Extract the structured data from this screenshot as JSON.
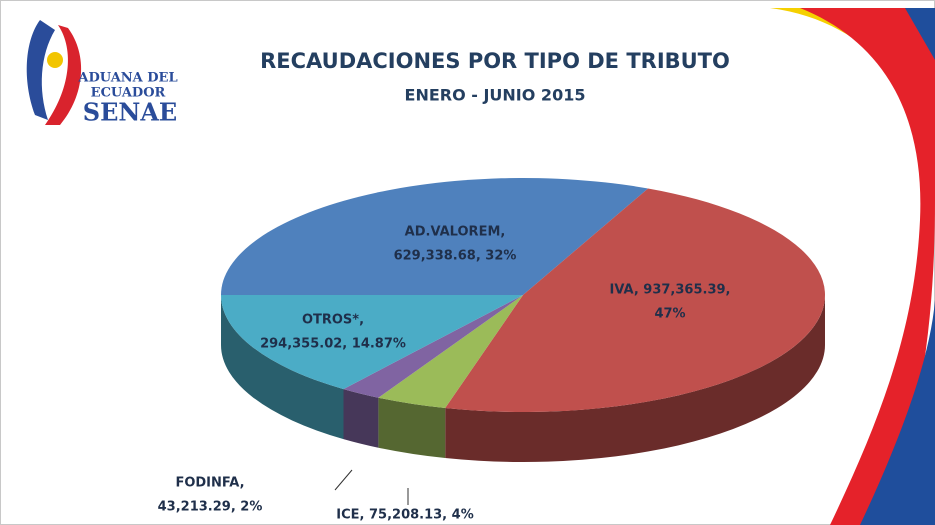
{
  "logo": {
    "line1": "ADUANA DEL",
    "line2": "ECUADOR",
    "line3": "SENAE"
  },
  "chart_data": {
    "type": "pie3d",
    "title": "RECAUDACIONES POR TIPO DE TRIBUTO",
    "subtitle": "ENERO - JUNIO 2015",
    "values": [
      629338.68,
      937365.39,
      75208.13,
      43213.29,
      294355.02
    ],
    "labels": [
      [
        "AD.VALOREM,",
        "629,338.68, 32%"
      ],
      [
        "IVA, 937,365.39,",
        "47%"
      ],
      [
        "ICE, 75,208.13, 4%"
      ],
      [
        "FODINFA,",
        "43,213.29, 2%"
      ],
      [
        "OTROS*,",
        "294,355.02, 14.87%"
      ]
    ],
    "percents": [
      32,
      47,
      4,
      2,
      14.87
    ],
    "colors": [
      "#4f81bd",
      "#c0504d",
      "#9bbb59",
      "#8064a2",
      "#4bacc6"
    ]
  }
}
